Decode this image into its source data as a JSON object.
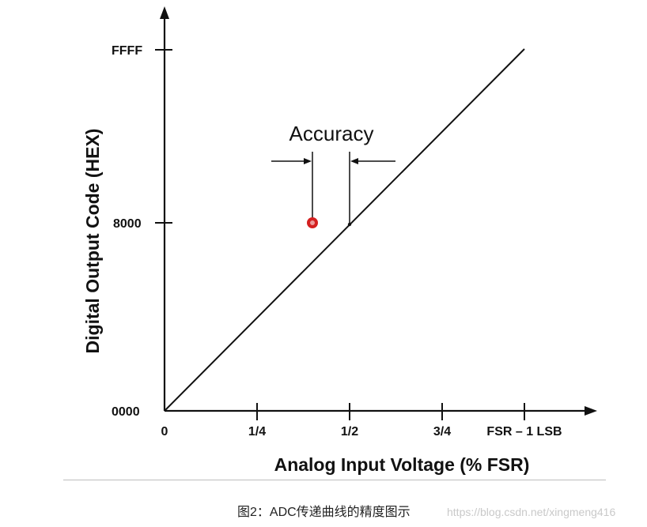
{
  "diagram": {
    "y_axis": {
      "title": "Digital Output Code (HEX)",
      "ticks": [
        "FFFF",
        "8000",
        "0000"
      ]
    },
    "x_axis": {
      "title": "Analog Input Voltage (% FSR)",
      "ticks": [
        "0",
        "1/4",
        "1/2",
        "3/4",
        "FSR – 1 LSB"
      ]
    },
    "annotation": "Accuracy",
    "accent_color": "#d42020"
  },
  "caption": "图2：ADC传递曲线的精度图示",
  "watermark": "https://blog.csdn.net/xingmeng416"
}
